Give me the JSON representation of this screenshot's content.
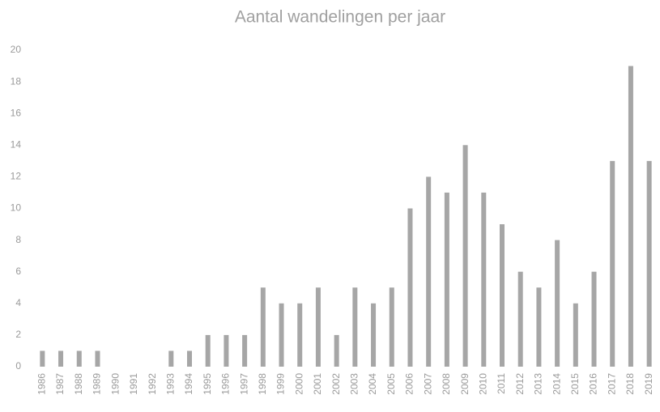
{
  "chart_data": {
    "type": "bar",
    "title": "Aantal wandelingen per jaar",
    "categories": [
      "1986",
      "1987",
      "1988",
      "1989",
      "1990",
      "1991",
      "1992",
      "1993",
      "1994",
      "1995",
      "1996",
      "1997",
      "1998",
      "1999",
      "2000",
      "2001",
      "2002",
      "2003",
      "2004",
      "2005",
      "2006",
      "2007",
      "2008",
      "2009",
      "2010",
      "2011",
      "2012",
      "2013",
      "2014",
      "2015",
      "2016",
      "2017",
      "2018",
      "2019"
    ],
    "values": [
      1,
      1,
      1,
      1,
      0,
      0,
      0,
      1,
      1,
      2,
      2,
      2,
      5,
      4,
      4,
      5,
      2,
      5,
      4,
      5,
      10,
      12,
      11,
      14,
      11,
      9,
      6,
      5,
      8,
      4,
      6,
      13,
      19,
      13
    ],
    "color": "#a6a6a6",
    "ylim": [
      0,
      20
    ],
    "yticks": [
      0,
      2,
      4,
      6,
      8,
      10,
      12,
      14,
      16,
      18,
      20
    ],
    "grid": false
  }
}
